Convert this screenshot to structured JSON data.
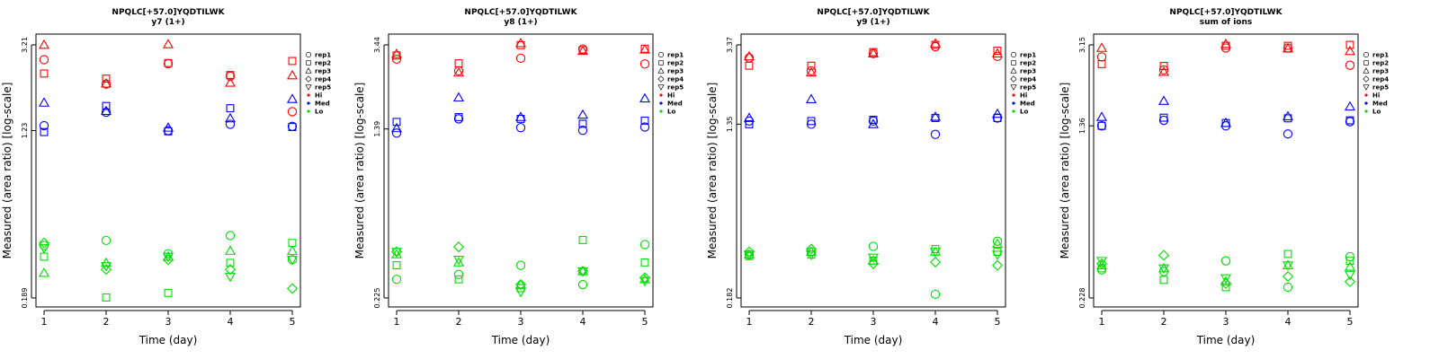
{
  "figure": {
    "xlabel": "Time (day)",
    "ylabel": "Measured (area ratio) [log-scale]"
  },
  "legend": {
    "placement": "right",
    "entries": [
      {
        "label": "rep1",
        "marker": "circle"
      },
      {
        "label": "rep2",
        "marker": "square"
      },
      {
        "label": "rep3",
        "marker": "triangle-up"
      },
      {
        "label": "rep4",
        "marker": "diamond"
      },
      {
        "label": "rep5",
        "marker": "triangle-down"
      },
      {
        "label": "Hi",
        "marker": "dot",
        "color": "#ff0000"
      },
      {
        "label": "Med",
        "marker": "dot",
        "color": "#0000ff"
      },
      {
        "label": "Lo",
        "marker": "dot",
        "color": "#00dd00"
      }
    ]
  },
  "colors": {
    "Hi": "#ff0000",
    "Med": "#0000ff",
    "Lo": "#00dd00"
  },
  "chart_data": [
    {
      "type": "scatter",
      "title": "NPQLC[+57.0]YQDTILWK",
      "subtitle": "y7 (1+)",
      "xlabel": "Time (day)",
      "ylabel": "Measured (area ratio) [log-scale]",
      "yscale": "log",
      "ylim": [
        0.189,
        3.21
      ],
      "yticks": [
        "3.21",
        "1.23",
        "0.189"
      ],
      "x": [
        1,
        2,
        3,
        4,
        5
      ],
      "series": [
        {
          "level": "Hi",
          "replicate": "rep1",
          "values": [
            2.72,
            2.07,
            2.6,
            2.26,
            1.52
          ]
        },
        {
          "level": "Hi",
          "replicate": "rep2",
          "values": [
            2.33,
            2.2,
            2.62,
            2.29,
            2.68
          ]
        },
        {
          "level": "Hi",
          "replicate": "rep3",
          "values": [
            3.21,
            2.08,
            3.23,
            2.1,
            2.28
          ]
        },
        {
          "level": "Med",
          "replicate": "rep1",
          "values": [
            1.3,
            1.51,
            1.23,
            1.32,
            1.29
          ]
        },
        {
          "level": "Med",
          "replicate": "rep2",
          "values": [
            1.21,
            1.62,
            1.22,
            1.58,
            1.28
          ]
        },
        {
          "level": "Med",
          "replicate": "rep3",
          "values": [
            1.68,
            1.53,
            1.27,
            1.41,
            1.75
          ]
        },
        {
          "level": "Lo",
          "replicate": "rep1",
          "values": [
            0.34,
            0.36,
            0.31,
            0.38,
            0.29
          ]
        },
        {
          "level": "Lo",
          "replicate": "rep2",
          "values": [
            0.3,
            0.19,
            0.2,
            0.28,
            0.35
          ]
        },
        {
          "level": "Lo",
          "replicate": "rep3",
          "values": [
            0.25,
            0.28,
            0.3,
            0.32,
            0.32
          ]
        },
        {
          "level": "Lo",
          "replicate": "rep4",
          "values": [
            0.35,
            0.26,
            0.29,
            0.26,
            0.21
          ]
        },
        {
          "level": "Lo",
          "replicate": "rep5",
          "values": [
            0.33,
            0.27,
            0.3,
            0.24,
            0.29
          ]
        }
      ]
    },
    {
      "type": "scatter",
      "title": "NPQLC[+57.0]YQDTILWK",
      "subtitle": "y8 (1+)",
      "xlabel": "Time (day)",
      "ylabel": "Measured (area ratio) [log-scale]",
      "yscale": "log",
      "ylim": [
        0.225,
        3.44
      ],
      "yticks": [
        "3.44",
        "1.39",
        "0.225"
      ],
      "x": [
        1,
        2,
        3,
        4,
        5
      ],
      "series": [
        {
          "level": "Hi",
          "replicate": "rep1",
          "values": [
            2.95,
            2.6,
            2.98,
            3.29,
            2.8
          ]
        },
        {
          "level": "Hi",
          "replicate": "rep2",
          "values": [
            3.07,
            2.82,
            3.43,
            3.25,
            3.3
          ]
        },
        {
          "level": "Hi",
          "replicate": "rep3",
          "values": [
            3.12,
            2.55,
            3.5,
            3.22,
            3.27
          ]
        },
        {
          "level": "Med",
          "replicate": "rep1",
          "values": [
            1.33,
            1.55,
            1.41,
            1.37,
            1.42
          ]
        },
        {
          "level": "Med",
          "replicate": "rep2",
          "values": [
            1.5,
            1.58,
            1.55,
            1.47,
            1.52
          ]
        },
        {
          "level": "Med",
          "replicate": "rep3",
          "values": [
            1.4,
            1.95,
            1.58,
            1.62,
            1.93
          ]
        },
        {
          "level": "Lo",
          "replicate": "rep1",
          "values": [
            0.275,
            0.29,
            0.32,
            0.26,
            0.4
          ]
        },
        {
          "level": "Lo",
          "replicate": "rep2",
          "values": [
            0.32,
            0.275,
            0.25,
            0.42,
            0.33
          ]
        },
        {
          "level": "Lo",
          "replicate": "rep3",
          "values": [
            0.36,
            0.33,
            0.26,
            0.3,
            0.275
          ]
        },
        {
          "level": "Lo",
          "replicate": "rep4",
          "values": [
            0.37,
            0.39,
            0.26,
            0.3,
            0.28
          ]
        },
        {
          "level": "Lo",
          "replicate": "rep5",
          "values": [
            0.37,
            0.34,
            0.24,
            0.3,
            0.27
          ]
        }
      ]
    },
    {
      "type": "scatter",
      "title": "NPQLC[+57.0]YQDTILWK",
      "subtitle": "y9 (1+)",
      "xlabel": "Time (day)",
      "ylabel": "Measured (area ratio) [log-scale]",
      "yscale": "log",
      "ylim": [
        0.182,
        3.37
      ],
      "yticks": [
        "3.37",
        "1.35",
        "0.182"
      ],
      "x": [
        1,
        2,
        3,
        4,
        5
      ],
      "series": [
        {
          "level": "Hi",
          "replicate": "rep1",
          "values": [
            2.9,
            2.5,
            3.05,
            3.3,
            2.95
          ]
        },
        {
          "level": "Hi",
          "replicate": "rep2",
          "values": [
            2.65,
            2.65,
            3.1,
            3.37,
            3.15
          ]
        },
        {
          "level": "Hi",
          "replicate": "rep3",
          "values": [
            2.95,
            2.45,
            3.05,
            3.42,
            3.05
          ]
        },
        {
          "level": "Med",
          "replicate": "rep1",
          "values": [
            1.4,
            1.35,
            1.4,
            1.2,
            1.45
          ]
        },
        {
          "level": "Med",
          "replicate": "rep2",
          "values": [
            1.35,
            1.4,
            1.42,
            1.45,
            1.45
          ]
        },
        {
          "level": "Med",
          "replicate": "rep3",
          "values": [
            1.45,
            1.8,
            1.35,
            1.47,
            1.52
          ]
        },
        {
          "level": "Lo",
          "replicate": "rep1",
          "values": [
            0.3,
            0.31,
            0.33,
            0.19,
            0.35
          ]
        },
        {
          "level": "Lo",
          "replicate": "rep2",
          "values": [
            0.295,
            0.3,
            0.28,
            0.32,
            0.31
          ]
        },
        {
          "level": "Lo",
          "replicate": "rep3",
          "values": [
            0.3,
            0.31,
            0.28,
            0.31,
            0.34
          ]
        },
        {
          "level": "Lo",
          "replicate": "rep4",
          "values": [
            0.31,
            0.32,
            0.27,
            0.275,
            0.265
          ]
        },
        {
          "level": "Lo",
          "replicate": "rep5",
          "values": [
            0.3,
            0.3,
            0.29,
            0.31,
            0.3
          ]
        }
      ]
    },
    {
      "type": "scatter",
      "title": "NPQLC[+57.0]YQDTILWK",
      "subtitle": "sum of ions",
      "xlabel": "Time (day)",
      "ylabel": "Measured (area ratio) [log-scale]",
      "yscale": "log",
      "ylim": [
        0.228,
        3.15
      ],
      "yticks": [
        "3.15",
        "1.36",
        "0.228"
      ],
      "x": [
        1,
        2,
        3,
        4,
        5
      ],
      "series": [
        {
          "level": "Hi",
          "replicate": "rep1",
          "values": [
            2.78,
            2.43,
            3.05,
            3.05,
            2.55
          ]
        },
        {
          "level": "Hi",
          "replicate": "rep2",
          "values": [
            2.58,
            2.53,
            3.12,
            3.12,
            3.15
          ]
        },
        {
          "level": "Hi",
          "replicate": "rep3",
          "values": [
            3.05,
            2.38,
            3.18,
            3.03,
            2.95
          ]
        },
        {
          "level": "Med",
          "replicate": "rep1",
          "values": [
            1.36,
            1.44,
            1.36,
            1.25,
            1.42
          ]
        },
        {
          "level": "Med",
          "replicate": "rep2",
          "values": [
            1.36,
            1.48,
            1.4,
            1.47,
            1.44
          ]
        },
        {
          "level": "Med",
          "replicate": "rep3",
          "values": [
            1.49,
            1.76,
            1.4,
            1.5,
            1.66
          ]
        },
        {
          "level": "Lo",
          "replicate": "rep1",
          "values": [
            0.305,
            0.3,
            0.335,
            0.255,
            0.35
          ]
        },
        {
          "level": "Lo",
          "replicate": "rep2",
          "values": [
            0.31,
            0.275,
            0.255,
            0.36,
            0.335
          ]
        },
        {
          "level": "Lo",
          "replicate": "rep3",
          "values": [
            0.32,
            0.31,
            0.27,
            0.32,
            0.315
          ]
        },
        {
          "level": "Lo",
          "replicate": "rep4",
          "values": [
            0.325,
            0.355,
            0.265,
            0.285,
            0.27
          ]
        },
        {
          "level": "Lo",
          "replicate": "rep5",
          "values": [
            0.335,
            0.31,
            0.28,
            0.32,
            0.29
          ]
        }
      ]
    }
  ]
}
